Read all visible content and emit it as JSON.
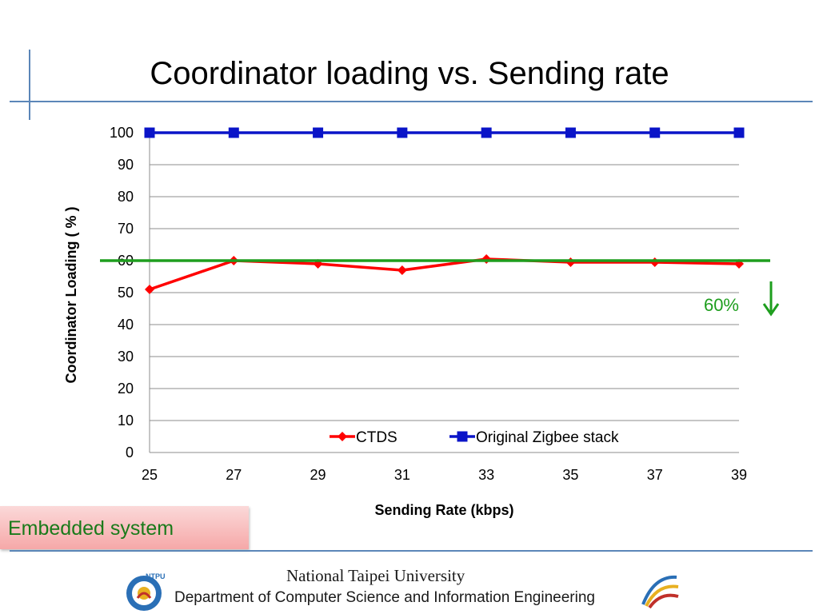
{
  "slide": {
    "title": "Coordinator loading vs. Sending rate",
    "embedded_label": "Embedded system",
    "footer_university": "National Taipei University",
    "footer_department": "Department of Computer Science and Information Engineering",
    "logo_text": "NTPU",
    "colors": {
      "accent_line": "#5b86b8",
      "embedded_text": "#1a7a1a",
      "embedded_box": "#f6a8a8"
    }
  },
  "chart_data": {
    "type": "line",
    "x": [
      25,
      27,
      29,
      31,
      33,
      35,
      37,
      39
    ],
    "series": [
      {
        "name": "CTDS",
        "color": "#ff0000",
        "marker": "diamond",
        "values": [
          51,
          60,
          59,
          57,
          60.5,
          59.5,
          59.5,
          59
        ]
      },
      {
        "name": "Original Zigbee stack",
        "color": "#0a14c8",
        "marker": "square",
        "values": [
          100,
          100,
          100,
          100,
          100,
          100,
          100,
          100
        ]
      }
    ],
    "xlabel": "Sending Rate (kbps)",
    "ylabel": "Coordinator Loading ( % )",
    "ylim": [
      0,
      100
    ],
    "yticks": [
      0,
      10,
      20,
      30,
      40,
      50,
      60,
      70,
      80,
      90,
      100
    ],
    "grid": true,
    "legend": "bottom-center",
    "reference_line": {
      "value": 60,
      "label": "60%",
      "color": "#1e9e1e",
      "arrow": "down"
    }
  }
}
